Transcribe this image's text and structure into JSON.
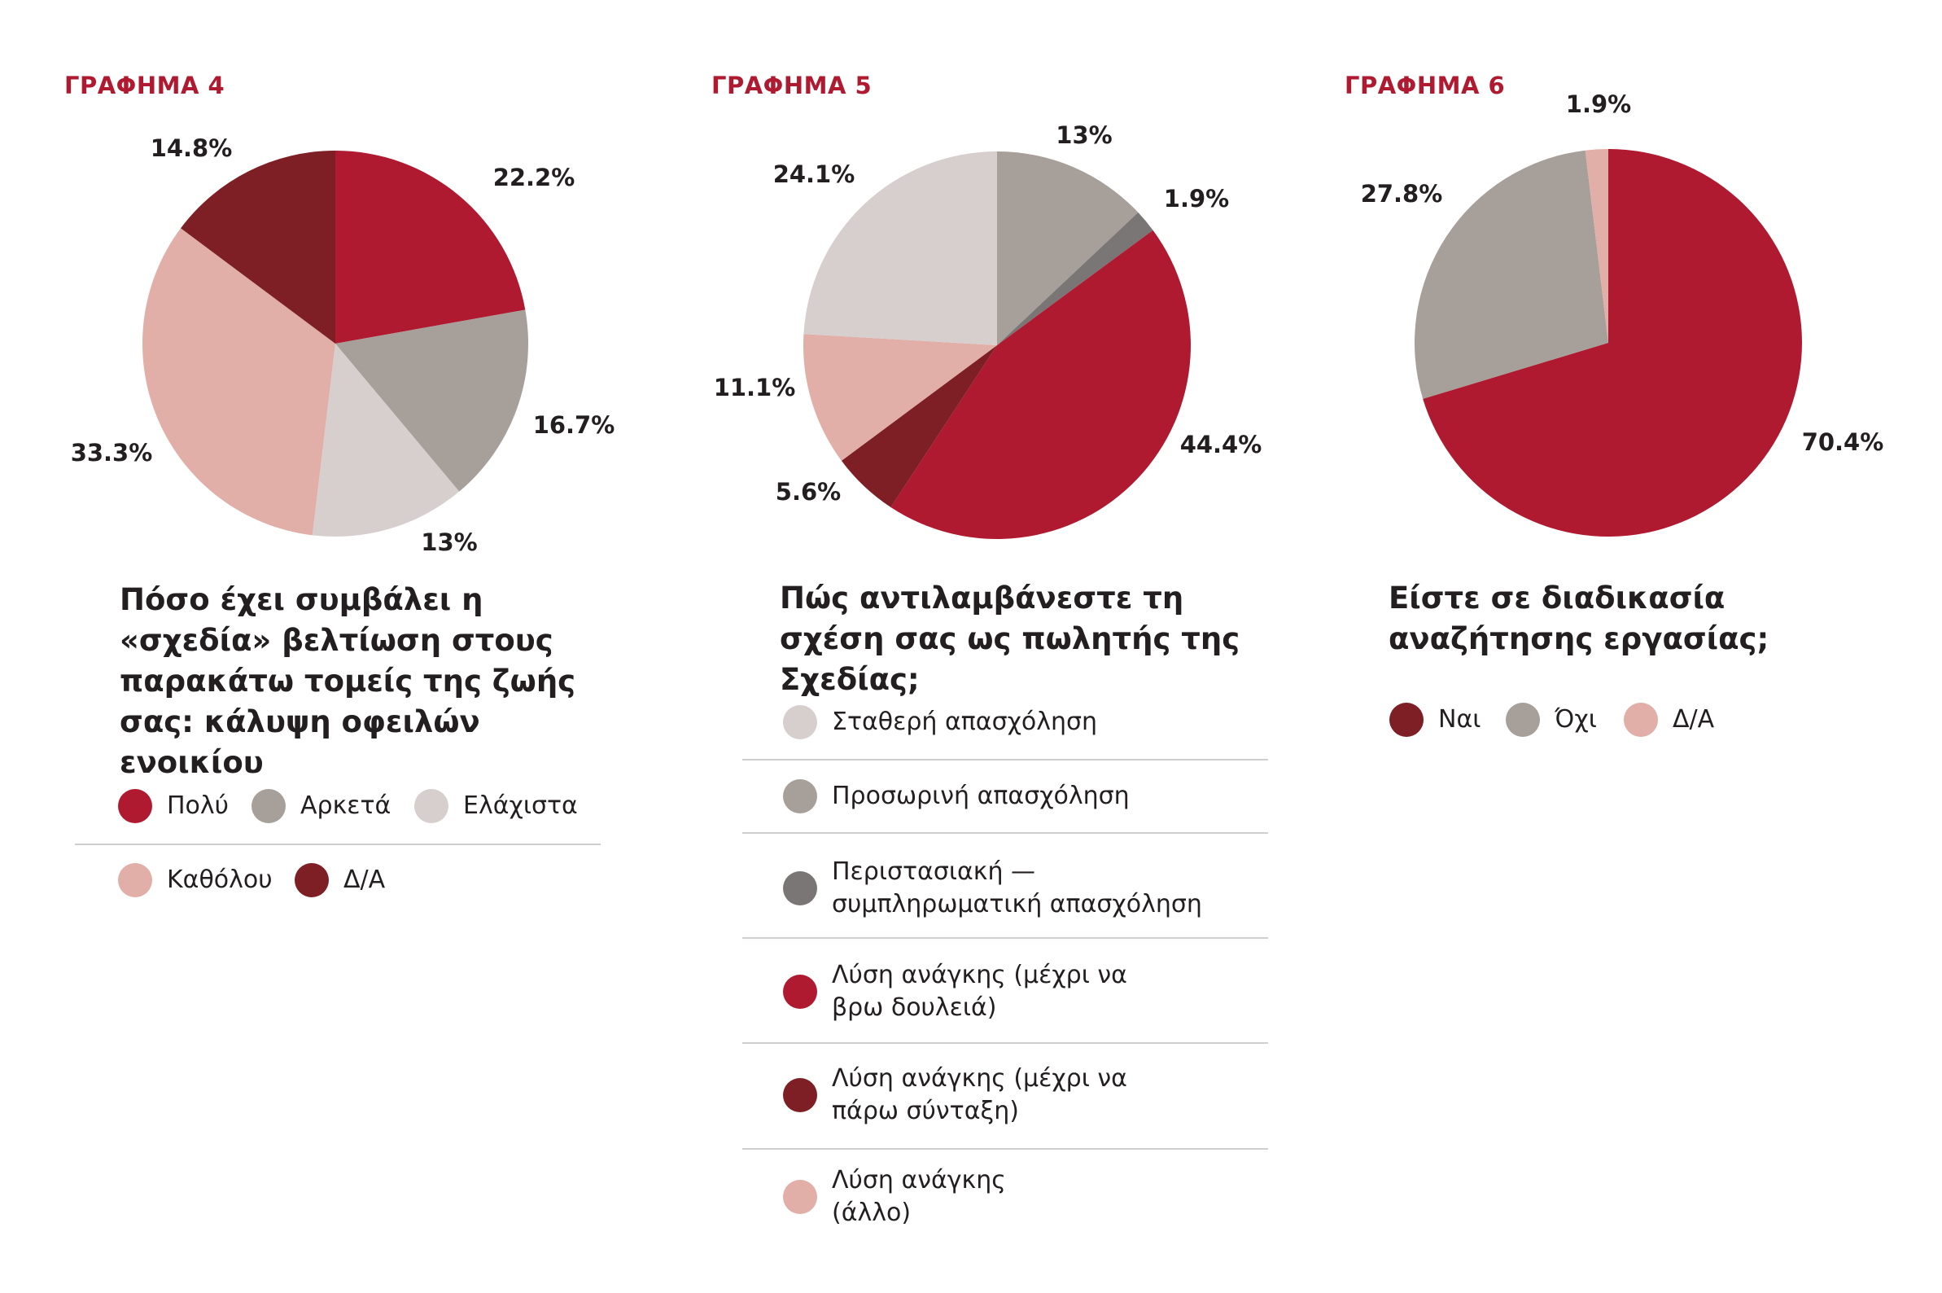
{
  "charts": [
    {
      "label": "ΓΡΑΦΗΜΑ 4",
      "question": "Πόσο έχει συμβάλει η «σχεδία» βελτίωση στους παρακάτω τομείς της ζωής σας: κάλυψη οφειλών ενοικίου"
    },
    {
      "label": "ΓΡΑΦΗΜΑ 5",
      "question": "Πώς αντιλαμβάνεστε τη σχέση σας ως πωλητής της Σχεδίας;"
    },
    {
      "label": "ΓΡΑΦΗΜΑ 6",
      "question": "Είστε σε διαδικασία αναζήτησης εργασίας;"
    }
  ],
  "chart_data": [
    {
      "type": "pie",
      "title": "ΓΡΑΦΗΜΑ 4",
      "labels": [
        "Πολύ",
        "Αρκετά",
        "Ελάχιστα",
        "Καθόλου",
        "Δ/Α"
      ],
      "values": [
        22.2,
        16.7,
        13,
        33.3,
        14.8
      ],
      "value_labels": [
        "22.2%",
        "16.7%",
        "13%",
        "33.3%",
        "14.8%"
      ],
      "colors": [
        "#b01a30",
        "#a69f9a",
        "#d6cfcd",
        "#e2aea8",
        "#7e1e25"
      ],
      "start": "12 o'clock, clockwise"
    },
    {
      "type": "pie",
      "title": "ΓΡΑΦΗΜΑ 5",
      "labels": [
        "Σταθερή απασχόληση",
        "Προσωρινή απασχόληση",
        "Περιστασιακή — συμπληρωματική απασχόληση",
        "Λύση ανάγκης (μέχρι να βρω δουλειά)",
        "Λύση ανάγκης (μέχρι να πάρω σύνταξη)",
        "Λύση ανάγκης (άλλο)"
      ],
      "values": [
        24.1,
        13,
        1.9,
        44.4,
        5.6,
        11.1
      ],
      "value_labels": [
        "24.1%",
        "13%",
        "1.9%",
        "44.4%",
        "5.6%",
        "11.1%"
      ],
      "colors": [
        "#d6cfcd",
        "#a69f9a",
        "#7a7676",
        "#b01a30",
        "#7e1e25",
        "#e2aea8"
      ],
      "slice_order": [
        "Προσωρινή απασχόληση",
        "Περιστασιακή — συμπληρωματική απασχόληση",
        "Λύση ανάγκης (μέχρι να βρω δουλειά)",
        "Λύση ανάγκης (μέχρι να πάρω σύνταξη)",
        "Λύση ανάγκης (άλλο)",
        "Σταθερή απασχόληση"
      ],
      "start": "12 o'clock, clockwise"
    },
    {
      "type": "pie",
      "title": "ΓΡΑΦΗΜΑ 6",
      "labels": [
        "Ναι",
        "Όχι",
        "Δ/Α"
      ],
      "values": [
        70.4,
        27.8,
        1.9
      ],
      "value_labels": [
        "70.4%",
        "27.8%",
        "1.9%"
      ],
      "colors": [
        "#b01a30",
        "#a69f9a",
        "#e2aea8"
      ],
      "legend_colors": [
        "#7e1e25",
        "#a69f9a",
        "#e2aea8"
      ],
      "start": "12 o'clock, clockwise"
    }
  ]
}
